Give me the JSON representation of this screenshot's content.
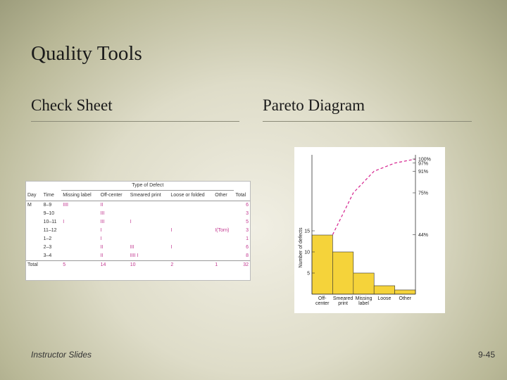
{
  "title": "Quality Tools",
  "left_heading": "Check Sheet",
  "right_heading": "Pareto Diagram",
  "check_sheet": {
    "group_header": "Type of Defect",
    "columns": [
      "Day",
      "Time",
      "Missing label",
      "Off-center",
      "Smeared print",
      "Loose or folded",
      "Other",
      "Total"
    ],
    "rows": [
      [
        "M",
        "8–9",
        "IIII",
        "II",
        null,
        null,
        null,
        6
      ],
      [
        null,
        "9–10",
        null,
        "III",
        null,
        null,
        null,
        3
      ],
      [
        null,
        "10–11",
        "I",
        "III",
        "I",
        null,
        null,
        5
      ],
      [
        null,
        "11–12",
        null,
        "I",
        null,
        "I",
        "I(Torn)",
        3
      ],
      [
        null,
        "1–2",
        null,
        "I",
        null,
        null,
        null,
        1
      ],
      [
        null,
        "2–3",
        null,
        "II",
        "III",
        "I",
        null,
        6
      ],
      [
        null,
        "3–4",
        null,
        "II",
        "IIII I",
        null,
        null,
        8
      ]
    ],
    "totals": [
      "Total",
      null,
      5,
      14,
      10,
      2,
      1,
      32
    ]
  },
  "chart_data": {
    "type": "pareto",
    "y_label": "Number of defects",
    "categories": [
      "Off-center",
      "Smeared print",
      "Missing label",
      "Loose",
      "Other"
    ],
    "series": [
      {
        "color": "#f5d33a",
        "values": [
          14,
          10,
          5,
          2,
          1
        ]
      },
      {
        "color": "#d6248f",
        "values": [
          44,
          75,
          91,
          97,
          100
        ],
        "axis": "y2"
      }
    ],
    "ylim": [
      0,
      32
    ],
    "yticks": [
      5,
      10,
      15
    ],
    "y2lim": [
      0,
      100
    ],
    "y2ticks": [
      {
        "value": 44,
        "label": "44%"
      },
      {
        "value": 75,
        "label": "75%"
      },
      {
        "value": 91,
        "label": "91%"
      },
      {
        "value": 97,
        "label": "97%"
      },
      {
        "value": 100,
        "label": "100%"
      }
    ]
  },
  "footer_left": "Instructor Slides",
  "footer_right": "9-45"
}
